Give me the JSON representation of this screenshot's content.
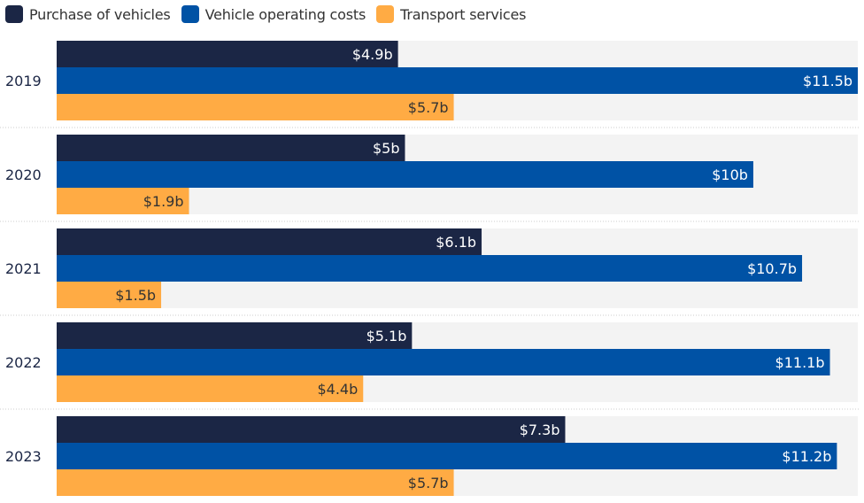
{
  "chart_data": {
    "type": "bar",
    "orientation": "horizontal",
    "title": "",
    "xlabel": "",
    "ylabel": "",
    "categories": [
      "2019",
      "2020",
      "2021",
      "2022",
      "2023"
    ],
    "series": [
      {
        "name": "Purchase of vehicles",
        "color": "#1b2645",
        "label_color": "#ffffff",
        "values": [
          4.9,
          5.0,
          6.1,
          5.1,
          7.3
        ],
        "labels": [
          "$4.9b",
          "$5b",
          "$6.1b",
          "$5.1b",
          "$7.3b"
        ]
      },
      {
        "name": "Vehicle operating costs",
        "color": "#0052a5",
        "label_color": "#ffffff",
        "values": [
          11.5,
          10.0,
          10.7,
          11.1,
          11.2
        ],
        "labels": [
          "$11.5b",
          "$10b",
          "$10.7b",
          "$11.1b",
          "$11.2b"
        ]
      },
      {
        "name": "Transport services",
        "color": "#ffab44",
        "label_color": "#333333",
        "values": [
          5.7,
          1.9,
          1.5,
          4.4,
          5.7
        ],
        "labels": [
          "$5.7b",
          "$1.9b",
          "$1.5b",
          "$4.4b",
          "$5.7b"
        ]
      }
    ],
    "xlim": [
      0,
      11.5
    ],
    "grid": false,
    "legend_position": "top-left",
    "background_color": "#f3f3f3",
    "divider_color": "#cccccc"
  }
}
